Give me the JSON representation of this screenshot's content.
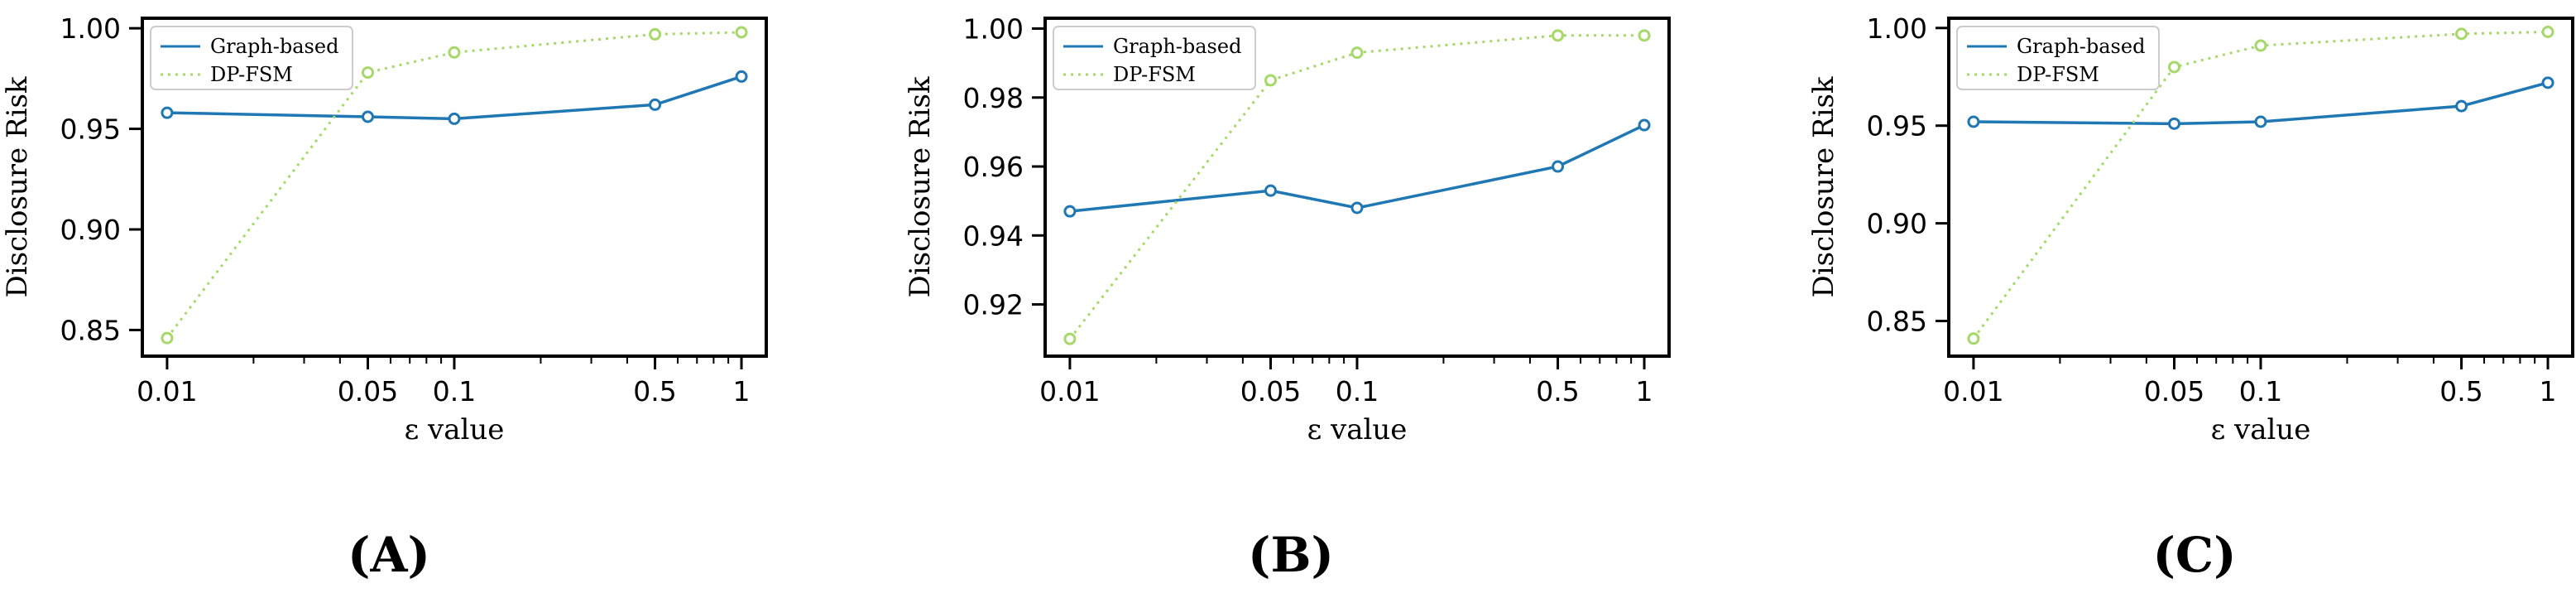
{
  "chart_data": [
    {
      "type": "line",
      "panel_label": "(A)",
      "xscale": "log",
      "x": [
        0.01,
        0.05,
        0.1,
        0.5,
        1
      ],
      "xtick_labels": [
        "0.01",
        "0.05",
        "0.1",
        "0.5",
        "1"
      ],
      "xlim": [
        0.0082,
        1.22
      ],
      "ylim": [
        0.837,
        1.005
      ],
      "yticks": [
        0.85,
        0.9,
        0.95,
        1.0
      ],
      "ytick_labels": [
        "0.85",
        "0.90",
        "0.95",
        "1.00"
      ],
      "xlabel": "ε value",
      "ylabel": "Disclosure Risk",
      "legend_position": "upper-left",
      "series": [
        {
          "name": "Graph-based",
          "color": "#1f77b4",
          "style": "solid",
          "values": [
            0.958,
            0.956,
            0.955,
            0.962,
            0.976
          ]
        },
        {
          "name": "DP-FSM",
          "color": "#a6d96a",
          "style": "dotted",
          "values": [
            0.846,
            0.978,
            0.988,
            0.997,
            0.998
          ]
        }
      ]
    },
    {
      "type": "line",
      "panel_label": "(B)",
      "xscale": "log",
      "x": [
        0.01,
        0.05,
        0.1,
        0.5,
        1
      ],
      "xtick_labels": [
        "0.01",
        "0.05",
        "0.1",
        "0.5",
        "1"
      ],
      "xlim": [
        0.0082,
        1.22
      ],
      "ylim": [
        0.905,
        1.003
      ],
      "yticks": [
        0.92,
        0.94,
        0.96,
        0.98,
        1.0
      ],
      "ytick_labels": [
        "0.92",
        "0.94",
        "0.96",
        "0.98",
        "1.00"
      ],
      "xlabel": "ε value",
      "ylabel": "Disclosure Risk",
      "legend_position": "upper-left",
      "series": [
        {
          "name": "Graph-based",
          "color": "#1f77b4",
          "style": "solid",
          "values": [
            0.947,
            0.953,
            0.948,
            0.96,
            0.972
          ]
        },
        {
          "name": "DP-FSM",
          "color": "#a6d96a",
          "style": "dotted",
          "values": [
            0.91,
            0.985,
            0.993,
            0.998,
            0.998
          ]
        }
      ]
    },
    {
      "type": "line",
      "panel_label": "(C)",
      "xscale": "log",
      "x": [
        0.01,
        0.05,
        0.1,
        0.5,
        1
      ],
      "xtick_labels": [
        "0.01",
        "0.05",
        "0.1",
        "0.5",
        "1"
      ],
      "xlim": [
        0.0082,
        1.22
      ],
      "ylim": [
        0.832,
        1.005
      ],
      "yticks": [
        0.85,
        0.9,
        0.95,
        1.0
      ],
      "ytick_labels": [
        "0.85",
        "0.90",
        "0.95",
        "1.00"
      ],
      "xlabel": "ε value",
      "ylabel": "Disclosure Risk",
      "legend_position": "upper-left",
      "series": [
        {
          "name": "Graph-based",
          "color": "#1f77b4",
          "style": "solid",
          "values": [
            0.952,
            0.951,
            0.952,
            0.96,
            0.972
          ]
        },
        {
          "name": "DP-FSM",
          "color": "#a6d96a",
          "style": "dotted",
          "values": [
            0.841,
            0.98,
            0.991,
            0.997,
            0.998
          ]
        }
      ]
    }
  ]
}
